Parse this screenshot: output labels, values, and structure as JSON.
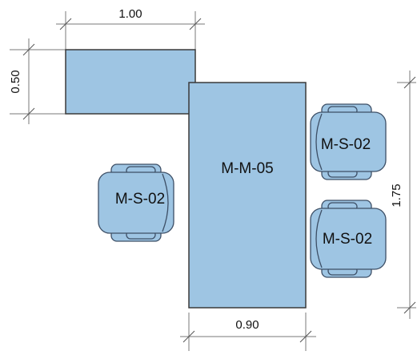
{
  "colors": {
    "furniture_fill": "#9ec5e3",
    "chair_fill": "#9ec5e3",
    "outline": "#3a3a3a",
    "dimension_line": "#7a7a7a"
  },
  "dimensions": {
    "top_width": "1.00",
    "left_height": "0.50",
    "right_height": "1.75",
    "bottom_width": "0.90"
  },
  "pieces": {
    "return_desk": {
      "label": ""
    },
    "main_desk": {
      "label": "M-M-05"
    }
  },
  "chairs": [
    {
      "label": "M-S-02",
      "icon": "armchair-icon"
    },
    {
      "label": "M-S-02",
      "icon": "armchair-icon"
    },
    {
      "label": "M-S-02",
      "icon": "armchair-icon"
    }
  ]
}
